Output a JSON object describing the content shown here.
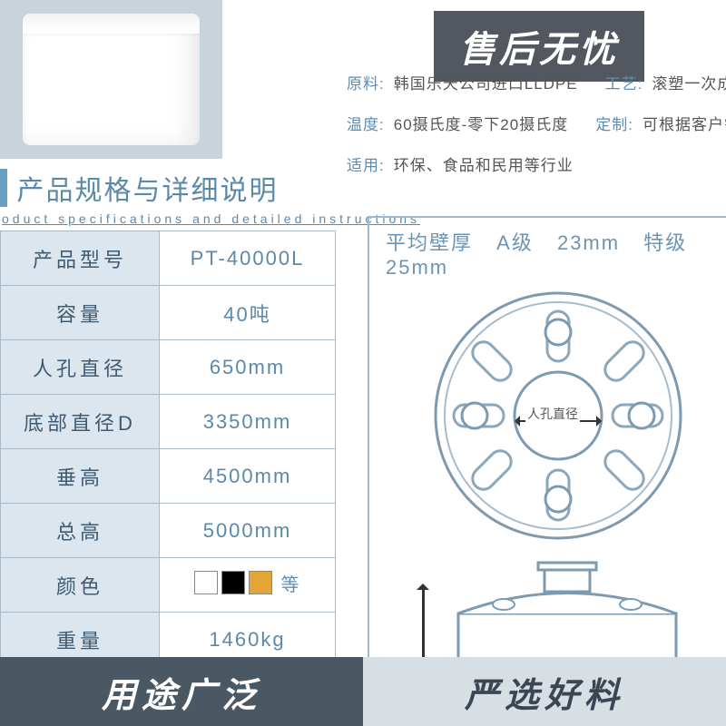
{
  "banners": {
    "top": "售后无忧",
    "bottom_left": "用途广泛",
    "bottom_right": "严选好料"
  },
  "attributes": {
    "row1": [
      {
        "key": "原料:",
        "val": "韩国乐天公司进口LLDPE"
      },
      {
        "key": "工艺:",
        "val": "滚塑一次成型，无缝无"
      }
    ],
    "row2": [
      {
        "key": "温度:",
        "val": "60摄氏度-零下20摄氏度"
      },
      {
        "key": "定制:",
        "val": "可根据客户需求量身定"
      }
    ],
    "row3": [
      {
        "key": "适用:",
        "val": "环保、食品和民用等行业"
      }
    ]
  },
  "spec_heading": {
    "title": "产品规格与详细说明",
    "subtitle": "oduct specifications and detailed instructions"
  },
  "spec_table": [
    {
      "label": "产品型号",
      "value": "PT-40000L"
    },
    {
      "label": "容量",
      "value": "40吨"
    },
    {
      "label": "人孔直径",
      "value": "650mm"
    },
    {
      "label": "底部直径D",
      "value": "3350mm"
    },
    {
      "label": "垂高",
      "value": "4500mm"
    },
    {
      "label": "总高",
      "value": "5000mm"
    },
    {
      "label": "颜色",
      "value": "__SWATCHES__"
    },
    {
      "label": "重量",
      "value": "1460kg"
    }
  ],
  "swatch_etc": "等",
  "diagram": {
    "header_prefix": "平均壁厚",
    "grade_a_label": "A级",
    "grade_a_val": "23mm",
    "grade_s_label": "特级",
    "grade_s_val": "25mm",
    "manhole_label": "人孔直径"
  },
  "colors": {
    "accent": "#6a9fc4",
    "table_header_bg": "#dbe6ef",
    "border": "#aabac7",
    "banner_dark": "#4a5864",
    "banner_light": "#d7dee4",
    "swatches": [
      "#ffffff",
      "#000000",
      "#e4a537"
    ]
  }
}
